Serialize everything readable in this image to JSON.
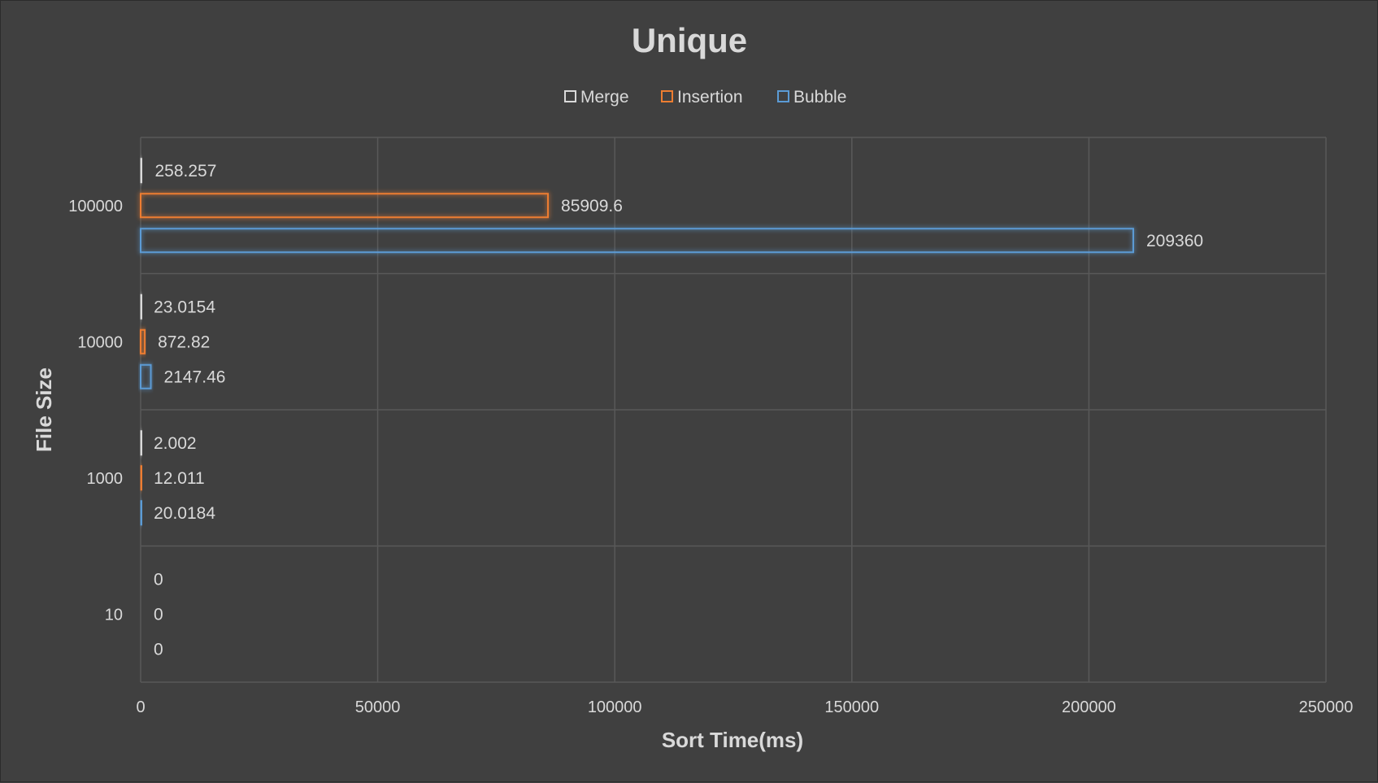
{
  "chart_data": {
    "type": "bar",
    "orientation": "horizontal",
    "title": "Unique",
    "xlabel": "Sort Time(ms)",
    "ylabel": "File Size",
    "categories": [
      "100000",
      "10000",
      "1000",
      "10"
    ],
    "series": [
      {
        "name": "Merge",
        "color": "#d9d9d9",
        "values": [
          258.257,
          23.0154,
          2.002,
          0
        ],
        "labels": [
          "258.257",
          "23.0154",
          "2.002",
          "0"
        ]
      },
      {
        "name": "Insertion",
        "color": "#ed7d31",
        "values": [
          85909.6,
          872.82,
          12.011,
          0
        ],
        "labels": [
          "85909.6",
          "872.82",
          "12.011",
          "0"
        ]
      },
      {
        "name": "Bubble",
        "color": "#5b9bd5",
        "values": [
          209360,
          2147.46,
          20.0184,
          0
        ],
        "labels": [
          "209360",
          "2147.46",
          "20.0184",
          "0"
        ]
      }
    ],
    "xlim": [
      0,
      250000
    ],
    "xticks": [
      "0",
      "50000",
      "100000",
      "150000",
      "200000",
      "250000"
    ],
    "grid": true,
    "legend_position": "top",
    "bar_style": "outline"
  }
}
